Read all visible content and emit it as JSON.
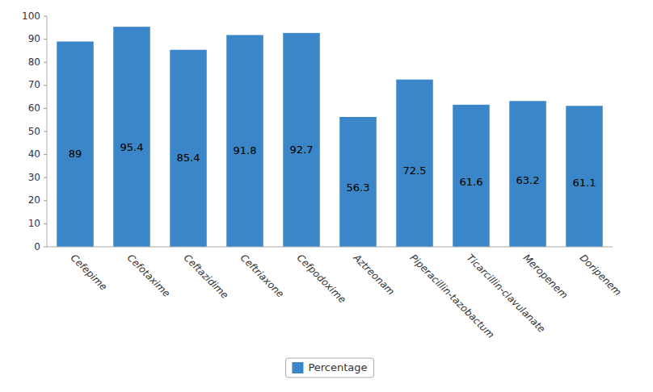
{
  "chart_data": {
    "type": "bar",
    "categories": [
      "Cefepime",
      "Cefotaxime",
      "Ceftazidime",
      "Ceftriaxone",
      "Cefpodoxime",
      "Aztreonam",
      "Piperacillin-tazobactum",
      "Ticarcillin-clavulanate",
      "Meropenem",
      "Doripenem"
    ],
    "series": [
      {
        "name": "Percentage",
        "color": "#3a86c8",
        "values": [
          89,
          95.4,
          85.4,
          91.8,
          92.7,
          56.3,
          72.5,
          61.6,
          63.2,
          61.1
        ]
      }
    ],
    "ylim": [
      0,
      100
    ],
    "yticks": [
      0,
      10,
      20,
      30,
      40,
      50,
      60,
      70,
      80,
      90,
      100
    ],
    "data_labels": true,
    "grid": false,
    "legend": "bottom"
  }
}
